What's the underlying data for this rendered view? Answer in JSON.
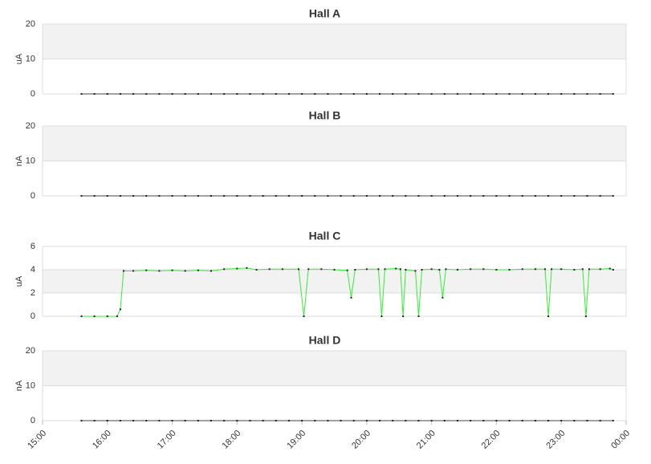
{
  "chart_data": [
    {
      "type": "line",
      "title": "Hall A",
      "ylabel": "uA",
      "xlim": [
        15,
        24
      ],
      "ylim": [
        0,
        20
      ],
      "yticks": [
        0,
        10,
        20
      ],
      "grid": true,
      "x": [
        15.6,
        15.8,
        16,
        16.2,
        16.4,
        16.6,
        16.8,
        17,
        17.2,
        17.4,
        17.6,
        17.8,
        18,
        18.2,
        18.4,
        18.6,
        18.8,
        19,
        19.2,
        19.4,
        19.6,
        19.8,
        20,
        20.2,
        20.4,
        20.6,
        20.8,
        21,
        21.2,
        21.4,
        21.6,
        21.8,
        22,
        22.2,
        22.4,
        22.6,
        22.8,
        23,
        23.2,
        23.4,
        23.6,
        23.8
      ],
      "series": [
        {
          "color": "#444444",
          "values": [
            0,
            0,
            0,
            0,
            0,
            0,
            0,
            0,
            0,
            0,
            0,
            0,
            0,
            0,
            0,
            0,
            0,
            0,
            0,
            0,
            0,
            0,
            0,
            0,
            0,
            0,
            0,
            0,
            0,
            0,
            0,
            0,
            0,
            0,
            0,
            0,
            0,
            0,
            0,
            0,
            0,
            0
          ]
        }
      ]
    },
    {
      "type": "line",
      "title": "Hall B",
      "ylabel": "nA",
      "xlim": [
        15,
        24
      ],
      "ylim": [
        0,
        20
      ],
      "yticks": [
        0,
        10,
        20
      ],
      "grid": true,
      "x": [
        15.6,
        15.8,
        16,
        16.2,
        16.4,
        16.6,
        16.8,
        17,
        17.2,
        17.4,
        17.6,
        17.8,
        18,
        18.2,
        18.4,
        18.6,
        18.8,
        19,
        19.2,
        19.4,
        19.6,
        19.8,
        20,
        20.2,
        20.4,
        20.6,
        20.8,
        21,
        21.2,
        21.4,
        21.6,
        21.8,
        22,
        22.2,
        22.4,
        22.6,
        22.8,
        23,
        23.2,
        23.4,
        23.6,
        23.8
      ],
      "series": [
        {
          "color": "#444444",
          "values": [
            0,
            0,
            0,
            0,
            0,
            0,
            0,
            0,
            0,
            0,
            0,
            0,
            0,
            0,
            0,
            0,
            0,
            0,
            0,
            0,
            0,
            0,
            0,
            0,
            0,
            0,
            0,
            0,
            0,
            0,
            0,
            0,
            0,
            0,
            0,
            0,
            0,
            0,
            0,
            0,
            0,
            0
          ]
        }
      ]
    },
    {
      "type": "line",
      "title": "Hall C",
      "ylabel": "uA",
      "xlim": [
        15,
        24
      ],
      "ylim": [
        0,
        6
      ],
      "yticks": [
        0,
        2,
        4,
        6
      ],
      "grid": true,
      "x": [
        15.6,
        15.8,
        16.0,
        16.15,
        16.2,
        16.25,
        16.4,
        16.6,
        16.8,
        17.0,
        17.2,
        17.4,
        17.6,
        17.8,
        18.0,
        18.15,
        18.3,
        18.5,
        18.7,
        18.95,
        19.03,
        19.1,
        19.3,
        19.5,
        19.7,
        19.76,
        19.82,
        20.0,
        20.18,
        20.23,
        20.28,
        20.45,
        20.52,
        20.56,
        20.6,
        20.75,
        20.8,
        20.85,
        21.0,
        21.12,
        21.17,
        21.22,
        21.4,
        21.6,
        21.8,
        22.0,
        22.2,
        22.4,
        22.6,
        22.75,
        22.8,
        22.85,
        23.0,
        23.2,
        23.33,
        23.38,
        23.43,
        23.6,
        23.75,
        23.8
      ],
      "series": [
        {
          "color": "#33ee33",
          "values": [
            0,
            0,
            0,
            0,
            0.6,
            3.9,
            3.9,
            3.95,
            3.9,
            3.95,
            3.9,
            3.95,
            3.9,
            4.05,
            4.1,
            4.15,
            4.0,
            4.05,
            4.05,
            4.05,
            0,
            4.05,
            4.05,
            4.0,
            3.95,
            1.6,
            4.0,
            4.05,
            4.05,
            0,
            4.05,
            4.1,
            4.05,
            0,
            4.0,
            3.9,
            0,
            4.0,
            4.05,
            4.0,
            1.6,
            4.05,
            4.0,
            4.05,
            4.05,
            4.0,
            4.0,
            4.05,
            4.05,
            4.05,
            0,
            4.05,
            4.05,
            4.0,
            4.05,
            0,
            4.05,
            4.05,
            4.1,
            4.0
          ]
        }
      ]
    },
    {
      "type": "line",
      "title": "Hall D",
      "ylabel": "nA",
      "xlim": [
        15,
        24
      ],
      "ylim": [
        0,
        20
      ],
      "yticks": [
        0,
        10,
        20
      ],
      "grid": true,
      "xticks": [
        {
          "value": 15,
          "label": "15:00"
        },
        {
          "value": 16,
          "label": "16:00"
        },
        {
          "value": 17,
          "label": "17:00"
        },
        {
          "value": 18,
          "label": "18:00"
        },
        {
          "value": 19,
          "label": "19:00"
        },
        {
          "value": 20,
          "label": "20:00"
        },
        {
          "value": 21,
          "label": "21:00"
        },
        {
          "value": 22,
          "label": "22:00"
        },
        {
          "value": 23,
          "label": "23:00"
        },
        {
          "value": 24,
          "label": "00:00"
        }
      ],
      "x": [
        15.6,
        15.8,
        16,
        16.2,
        16.4,
        16.6,
        16.8,
        17,
        17.2,
        17.4,
        17.6,
        17.8,
        18,
        18.2,
        18.4,
        18.6,
        18.8,
        19,
        19.2,
        19.4,
        19.6,
        19.8,
        20,
        20.2,
        20.4,
        20.6,
        20.8,
        21,
        21.2,
        21.4,
        21.6,
        21.8,
        22,
        22.2,
        22.4,
        22.6,
        22.8,
        23,
        23.2,
        23.4,
        23.6,
        23.8
      ],
      "series": [
        {
          "color": "#444444",
          "values": [
            0,
            0,
            0,
            0,
            0,
            0,
            0,
            0,
            0,
            0,
            0,
            0,
            0,
            0,
            0,
            0,
            0,
            0,
            0,
            0,
            0,
            0,
            0,
            0,
            0,
            0,
            0,
            0,
            0,
            0,
            0,
            0,
            0,
            0,
            0,
            0,
            0,
            0,
            0,
            0,
            0,
            0
          ]
        }
      ]
    }
  ]
}
